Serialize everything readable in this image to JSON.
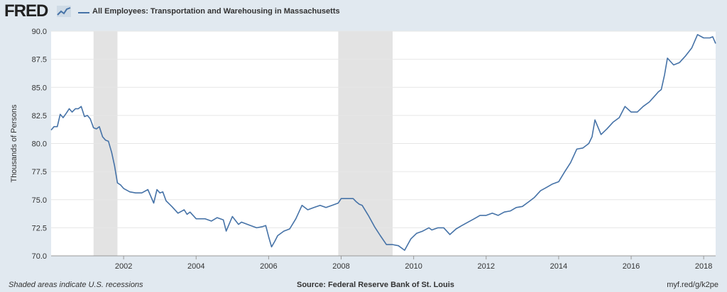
{
  "header": {
    "logo_text": "FRED",
    "series_title": "All Employees: Transportation and Warehousing in Massachusetts"
  },
  "colors": {
    "line": "#4572a7",
    "recession": "#e3e3e3",
    "background": "#e1e9f0",
    "plot": "#ffffff"
  },
  "footer": {
    "note": "Shaded areas indicate U.S. recessions",
    "source": "Source: Federal Reserve Bank of St. Louis",
    "short_url": "myf.red/g/k2pe"
  },
  "chart_data": {
    "type": "line",
    "ylabel": "Thousands of Persons",
    "ylim": [
      70.0,
      90.0
    ],
    "yticks": [
      "70.0",
      "72.5",
      "75.0",
      "77.5",
      "80.0",
      "82.5",
      "85.0",
      "87.5",
      "90.0"
    ],
    "xlim": [
      2000.0,
      2018.33
    ],
    "xticks": [
      "2002",
      "2004",
      "2006",
      "2008",
      "2010",
      "2012",
      "2014",
      "2016",
      "2018"
    ],
    "grid": true,
    "recessions": [
      [
        2001.17,
        2001.83
      ],
      [
        2007.92,
        2009.42
      ]
    ],
    "series": [
      {
        "name": "All Employees: Transportation and Warehousing in Massachusetts",
        "x": [
          2000.0,
          2000.08,
          2000.17,
          2000.25,
          2000.33,
          2000.42,
          2000.5,
          2000.58,
          2000.67,
          2000.75,
          2000.83,
          2000.92,
          2001.0,
          2001.08,
          2001.17,
          2001.25,
          2001.33,
          2001.42,
          2001.5,
          2001.58,
          2001.67,
          2001.75,
          2001.83,
          2001.92,
          2002.0,
          2002.17,
          2002.33,
          2002.5,
          2002.67,
          2002.83,
          2002.92,
          2003.0,
          2003.08,
          2003.17,
          2003.33,
          2003.5,
          2003.67,
          2003.75,
          2003.83,
          2004.0,
          2004.25,
          2004.42,
          2004.58,
          2004.75,
          2004.83,
          2005.0,
          2005.17,
          2005.25,
          2005.5,
          2005.67,
          2005.83,
          2005.92,
          2006.0,
          2006.08,
          2006.17,
          2006.25,
          2006.42,
          2006.58,
          2006.75,
          2006.92,
          2007.08,
          2007.25,
          2007.42,
          2007.58,
          2007.75,
          2007.92,
          2008.0,
          2008.17,
          2008.33,
          2008.42,
          2008.5,
          2008.58,
          2008.75,
          2008.92,
          2009.08,
          2009.25,
          2009.42,
          2009.58,
          2009.75,
          2009.92,
          2010.08,
          2010.25,
          2010.42,
          2010.5,
          2010.67,
          2010.83,
          2011.0,
          2011.17,
          2011.33,
          2011.5,
          2011.67,
          2011.83,
          2012.0,
          2012.17,
          2012.33,
          2012.5,
          2012.67,
          2012.83,
          2013.0,
          2013.17,
          2013.33,
          2013.5,
          2013.67,
          2013.83,
          2014.0,
          2014.17,
          2014.33,
          2014.5,
          2014.67,
          2014.83,
          2014.92,
          2015.0,
          2015.17,
          2015.33,
          2015.5,
          2015.67,
          2015.83,
          2016.0,
          2016.17,
          2016.33,
          2016.5,
          2016.67,
          2016.75,
          2016.83,
          2016.92,
          2017.0,
          2017.17,
          2017.33,
          2017.5,
          2017.67,
          2017.75,
          2017.83,
          2018.0,
          2018.17,
          2018.25,
          2018.33
        ],
        "values": [
          81.2,
          81.5,
          81.5,
          82.6,
          82.3,
          82.7,
          83.1,
          82.8,
          83.1,
          83.1,
          83.3,
          82.4,
          82.5,
          82.2,
          81.4,
          81.3,
          81.5,
          80.6,
          80.3,
          80.2,
          79.2,
          78.0,
          76.5,
          76.3,
          76.0,
          75.7,
          75.6,
          75.6,
          75.9,
          74.7,
          75.9,
          75.6,
          75.7,
          74.9,
          74.4,
          73.8,
          74.1,
          73.7,
          73.9,
          73.3,
          73.3,
          73.1,
          73.4,
          73.2,
          72.2,
          73.5,
          72.8,
          73.0,
          72.7,
          72.5,
          72.6,
          72.7,
          71.7,
          70.8,
          71.3,
          71.8,
          72.2,
          72.4,
          73.3,
          74.5,
          74.1,
          74.3,
          74.5,
          74.3,
          74.5,
          74.7,
          75.1,
          75.1,
          75.1,
          74.8,
          74.6,
          74.5,
          73.6,
          72.6,
          71.8,
          71.0,
          71.0,
          70.9,
          70.5,
          71.5,
          72.0,
          72.2,
          72.5,
          72.3,
          72.5,
          72.5,
          71.9,
          72.4,
          72.7,
          73.0,
          73.3,
          73.6,
          73.6,
          73.8,
          73.6,
          73.9,
          74.0,
          74.3,
          74.4,
          74.8,
          75.2,
          75.8,
          76.1,
          76.4,
          76.6,
          77.5,
          78.3,
          79.5,
          79.6,
          80.0,
          80.6,
          82.1,
          80.8,
          81.3,
          81.9,
          82.3,
          83.3,
          82.8,
          82.8,
          83.3,
          83.7,
          84.3,
          84.6,
          84.8,
          86.1,
          87.6,
          87.0,
          87.2,
          87.8,
          88.5,
          89.1,
          89.7,
          89.4,
          89.4,
          89.5,
          88.9
        ]
      }
    ]
  }
}
